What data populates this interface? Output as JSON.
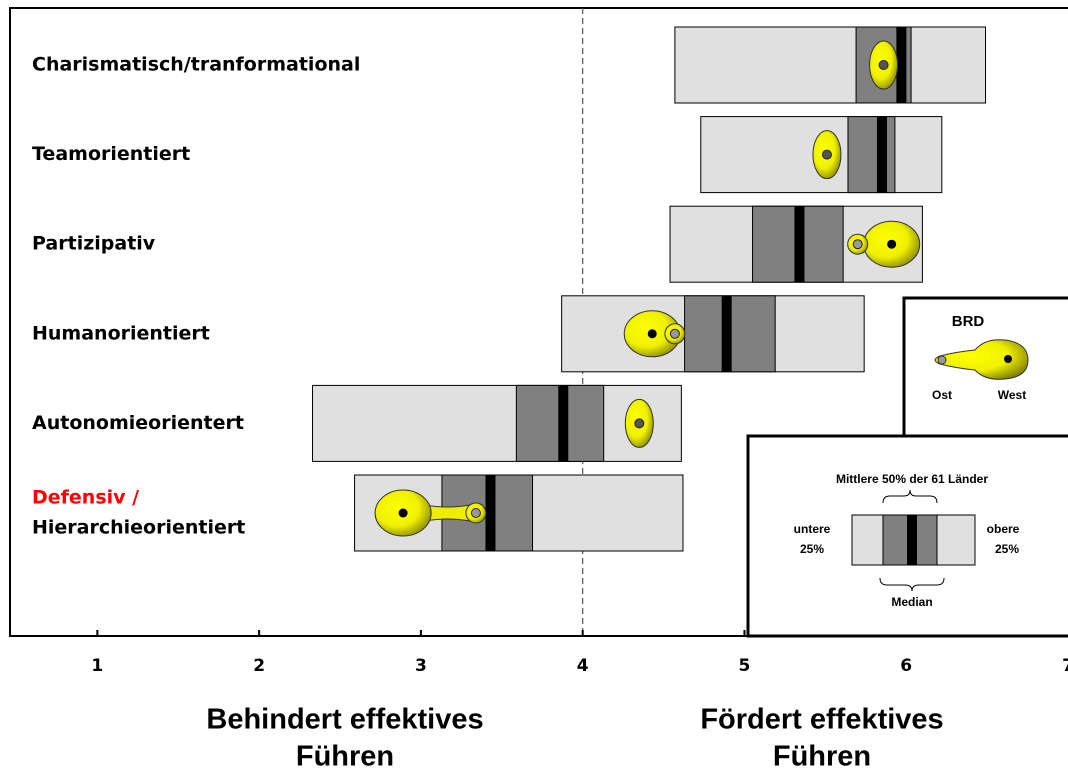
{
  "chart_data": {
    "type": "range_box",
    "categories": [
      [
        "Charismatisch/tranformational"
      ],
      [
        "Teamorientiert"
      ],
      [
        "Partizipativ"
      ],
      [
        "Humanorientiert"
      ],
      [
        "Autonomieorientert"
      ],
      [
        "Defensiv /",
        "Hierarchieorientiert"
      ]
    ],
    "label_colors": [
      [
        "#000000"
      ],
      [
        "#000000"
      ],
      [
        "#000000"
      ],
      [
        "#000000"
      ],
      [
        "#000000"
      ],
      [
        "#ff0000",
        "#000000"
      ]
    ],
    "boxes": [
      {
        "min": 4.57,
        "q1": 5.69,
        "median": 5.97,
        "q3": 6.03,
        "max": 6.49
      },
      {
        "min": 4.73,
        "q1": 5.64,
        "median": 5.85,
        "q3": 5.93,
        "max": 6.22
      },
      {
        "min": 4.54,
        "q1": 5.05,
        "median": 5.34,
        "q3": 5.61,
        "max": 6.1
      },
      {
        "min": 3.87,
        "q1": 4.63,
        "median": 4.89,
        "q3": 5.19,
        "max": 5.74
      },
      {
        "min": 2.33,
        "q1": 3.59,
        "median": 3.88,
        "q3": 4.13,
        "max": 4.61
      },
      {
        "min": 2.59,
        "q1": 3.13,
        "median": 3.43,
        "q3": 3.69,
        "max": 4.62
      }
    ],
    "series": [
      {
        "name": "Ost",
        "values": [
          5.86,
          5.51,
          5.7,
          4.57,
          4.35,
          3.34
        ]
      },
      {
        "name": "West",
        "values": [
          5.86,
          5.51,
          5.91,
          4.43,
          4.35,
          2.89
        ]
      }
    ],
    "colors": {
      "range": "#e0e0e0",
      "middle": "#808080",
      "median": "#000000",
      "marker": "#ffff00"
    },
    "xlim": [
      0.46,
      7.0
    ],
    "xticks": [
      1,
      2,
      3,
      4,
      5,
      6,
      7
    ],
    "reference_line": 4,
    "x_labels": {
      "left": [
        "Behindert effektives",
        "Führen"
      ],
      "right": [
        "Fördert effektives",
        "Führen"
      ]
    },
    "legend": {
      "title": "BRD",
      "box_title": "Mittlere 50% der 61 Länder",
      "lower": [
        "untere",
        "25%"
      ],
      "upper": [
        "obere",
        "25%"
      ],
      "median": "Median"
    }
  }
}
